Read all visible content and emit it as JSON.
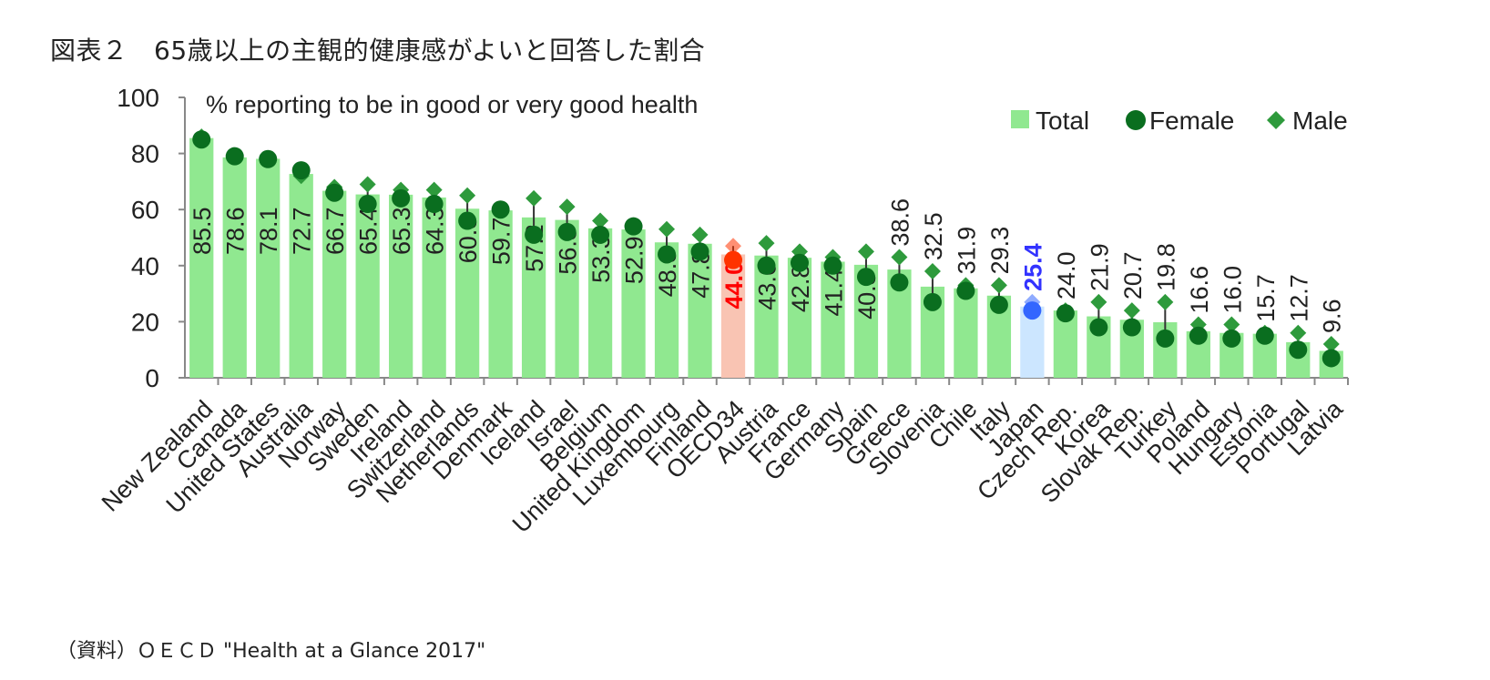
{
  "page": {
    "title": "図表２　65歳以上の主観的健康感がよいと回答した割合",
    "source": "（資料）ＯＥＣＤ \"Health at a Glance 2017\""
  },
  "chart_data": {
    "type": "bar",
    "subtitle": "% reporting to be in good or very good health",
    "ylim": [
      0,
      100
    ],
    "yticks": [
      0,
      20,
      40,
      60,
      80,
      100
    ],
    "grid": false,
    "legend": {
      "position": "top-right",
      "entries": [
        "Total",
        "Female",
        "Male"
      ]
    },
    "categories": [
      "New Zealand",
      "Canada",
      "United States",
      "Australia",
      "Norway",
      "Sweden",
      "Ireland",
      "Switzerland",
      "Netherlands",
      "Denmark",
      "Iceland",
      "Israel",
      "Belgium",
      "United Kingdom",
      "Luxembourg",
      "Finland",
      "OECD34",
      "Austria",
      "France",
      "Germany",
      "Spain",
      "Greece",
      "Slovenia",
      "Chile",
      "Italy",
      "Japan",
      "Czech Rep.",
      "Korea",
      "Slovak Rep.",
      "Turkey",
      "Poland",
      "Hungary",
      "Estonia",
      "Portugal",
      "Latvia"
    ],
    "series": [
      {
        "name": "Total",
        "values": [
          85.5,
          78.6,
          78.1,
          72.7,
          66.7,
          65.4,
          65.3,
          64.3,
          60.3,
          59.7,
          57.2,
          56.3,
          53.3,
          52.9,
          48.3,
          47.8,
          44.0,
          43.6,
          42.8,
          41.4,
          40.3,
          38.6,
          32.5,
          31.9,
          29.3,
          25.4,
          24.0,
          21.9,
          20.7,
          19.8,
          16.6,
          16.0,
          15.7,
          12.7,
          9.6
        ]
      },
      {
        "name": "Female",
        "values": [
          85,
          79,
          78,
          74,
          66,
          62,
          64,
          62,
          56,
          60,
          51,
          52,
          51,
          54,
          44,
          45,
          42,
          40,
          41,
          40,
          36,
          34,
          27,
          31,
          26,
          24,
          23,
          18,
          18,
          14,
          15,
          14,
          15,
          10,
          7
        ]
      },
      {
        "name": "Male",
        "values": [
          86,
          79,
          78,
          72,
          68,
          69,
          67,
          67,
          65,
          60,
          64,
          61,
          56,
          54,
          53,
          51,
          47,
          48,
          45,
          43,
          45,
          43,
          38,
          33,
          33,
          27,
          24,
          27,
          24,
          27,
          19,
          19,
          16,
          16,
          12
        ]
      }
    ],
    "highlights": [
      {
        "category": "OECD34",
        "bar_color": "#f9c4b3",
        "marker_color": "#ff3300",
        "label_color": "#ff0000"
      },
      {
        "category": "Japan",
        "bar_color": "#cce6ff",
        "marker_color": "#3366ff",
        "label_color": "#3333ff"
      }
    ],
    "colors": {
      "bar": "#90e890",
      "female": "#0a6e1f",
      "male": "#2e9a3c",
      "axis": "#888888"
    }
  }
}
